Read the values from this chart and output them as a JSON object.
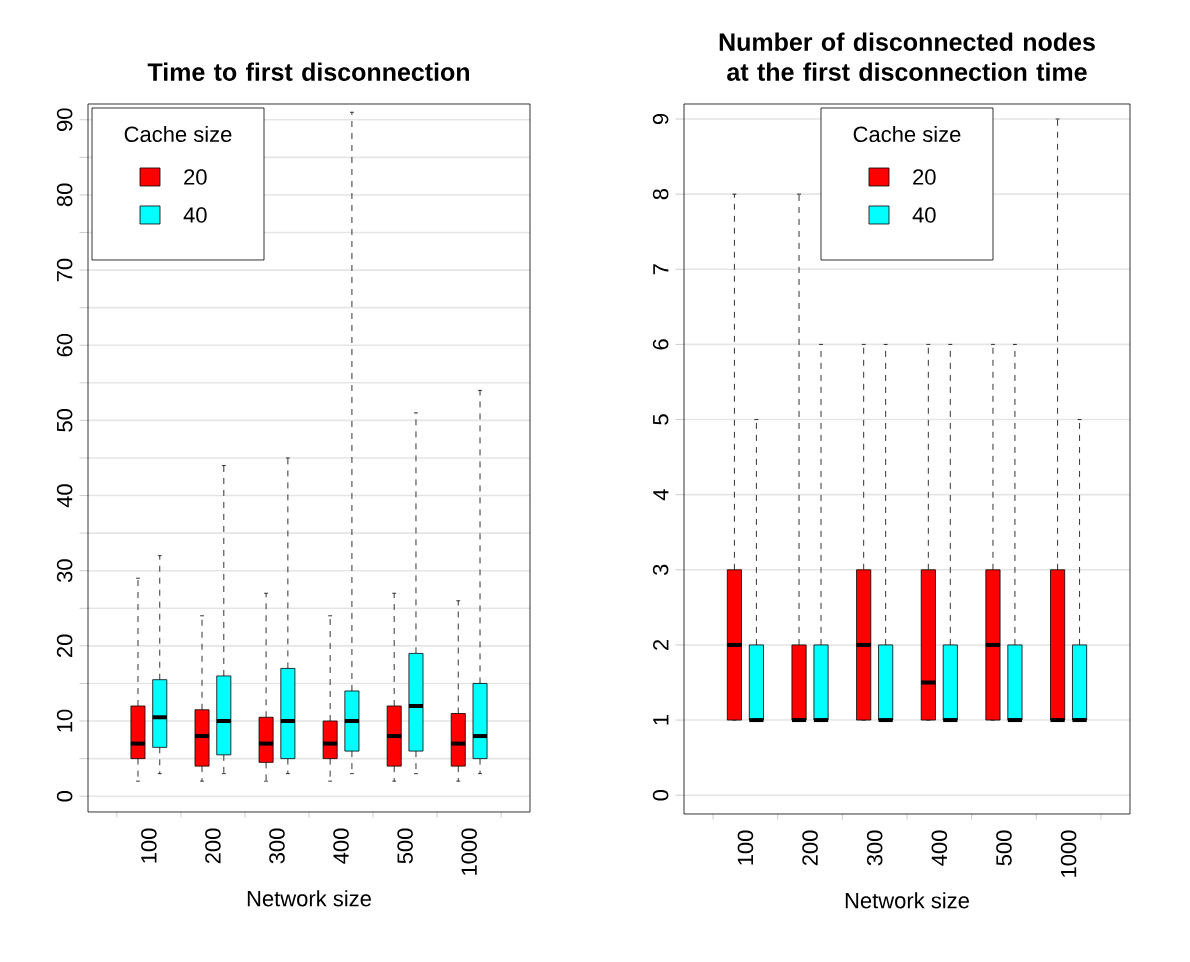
{
  "chart_data": [
    {
      "type": "box",
      "title": "Time to first disconnection",
      "xlabel": "Network size",
      "categories": [
        "100",
        "200",
        "300",
        "400",
        "500",
        "1000"
      ],
      "legend_title": "Cache size",
      "legend": "top left",
      "grid": "y",
      "ylim": [
        -2.1,
        92.1
      ],
      "yticks": [
        0,
        {
          "value": 5,
          "label": null
        },
        10,
        {
          "value": 15,
          "label": null
        },
        20,
        {
          "value": 25,
          "label": null
        },
        30,
        {
          "value": 35,
          "label": null
        },
        40,
        {
          "value": 45,
          "label": null
        },
        50,
        {
          "value": 55,
          "label": null
        },
        60,
        {
          "value": 65,
          "label": null
        },
        70,
        {
          "value": 75,
          "label": null
        },
        80,
        {
          "value": 85,
          "label": null
        },
        90
      ],
      "series": [
        {
          "name": "20",
          "color": "#ff0000",
          "boxes": [
            {
              "low": 2,
              "q1": 5,
              "median": 7,
              "q3": 12,
              "high": 29
            },
            {
              "low": 2,
              "q1": 4,
              "median": 8,
              "q3": 11.5,
              "high": 24
            },
            {
              "low": 2,
              "q1": 4.5,
              "median": 7,
              "q3": 10.5,
              "high": 27
            },
            {
              "low": 2,
              "q1": 5,
              "median": 7,
              "q3": 10,
              "high": 24
            },
            {
              "low": 2,
              "q1": 4,
              "median": 8,
              "q3": 12,
              "high": 27
            },
            {
              "low": 2,
              "q1": 4,
              "median": 7,
              "q3": 11,
              "high": 26
            }
          ]
        },
        {
          "name": "40",
          "color": "#00ffff",
          "boxes": [
            {
              "low": 3,
              "q1": 6.5,
              "median": 10.5,
              "q3": 15.5,
              "high": 32
            },
            {
              "low": 3,
              "q1": 5.5,
              "median": 10,
              "q3": 16,
              "high": 44
            },
            {
              "low": 3,
              "q1": 5,
              "median": 10,
              "q3": 17,
              "high": 45
            },
            {
              "low": 3,
              "q1": 6,
              "median": 10,
              "q3": 14,
              "high": 91
            },
            {
              "low": 3,
              "q1": 6,
              "median": 12,
              "q3": 19,
              "high": 51
            },
            {
              "low": 3,
              "q1": 5,
              "median": 8,
              "q3": 15,
              "high": 54
            }
          ]
        }
      ]
    },
    {
      "type": "box",
      "title": "Number of disconnected nodes at the first disconnection time",
      "xlabel": "Network size",
      "categories": [
        "100",
        "200",
        "300",
        "400",
        "500",
        "1000"
      ],
      "legend_title": "Cache size",
      "legend": "top",
      "grid": "y",
      "ylim": [
        -0.25,
        9.2
      ],
      "yticks": [
        0,
        1,
        2,
        3,
        4,
        5,
        6,
        7,
        8,
        9
      ],
      "series": [
        {
          "name": "20",
          "color": "#ff0000",
          "boxes": [
            {
              "low": 1,
              "q1": 1,
              "median": 2,
              "q3": 3,
              "high": 8
            },
            {
              "low": 1,
              "q1": 1,
              "median": 1,
              "q3": 2,
              "high": 8
            },
            {
              "low": 1,
              "q1": 1,
              "median": 2,
              "q3": 3,
              "high": 6
            },
            {
              "low": 1,
              "q1": 1,
              "median": 1.5,
              "q3": 3,
              "high": 6
            },
            {
              "low": 1,
              "q1": 1,
              "median": 2,
              "q3": 3,
              "high": 6
            },
            {
              "low": 1,
              "q1": 1,
              "median": 1,
              "q3": 3,
              "high": 9
            }
          ]
        },
        {
          "name": "40",
          "color": "#00ffff",
          "boxes": [
            {
              "low": 1,
              "q1": 1,
              "median": 1,
              "q3": 2,
              "high": 5
            },
            {
              "low": 1,
              "q1": 1,
              "median": 1,
              "q3": 2,
              "high": 6
            },
            {
              "low": 1,
              "q1": 1,
              "median": 1,
              "q3": 2,
              "high": 6
            },
            {
              "low": 1,
              "q1": 1,
              "median": 1,
              "q3": 2,
              "high": 6
            },
            {
              "low": 1,
              "q1": 1,
              "median": 1,
              "q3": 2,
              "high": 6
            },
            {
              "low": 1,
              "q1": 1,
              "median": 1,
              "q3": 2,
              "high": 5
            }
          ]
        }
      ]
    }
  ]
}
